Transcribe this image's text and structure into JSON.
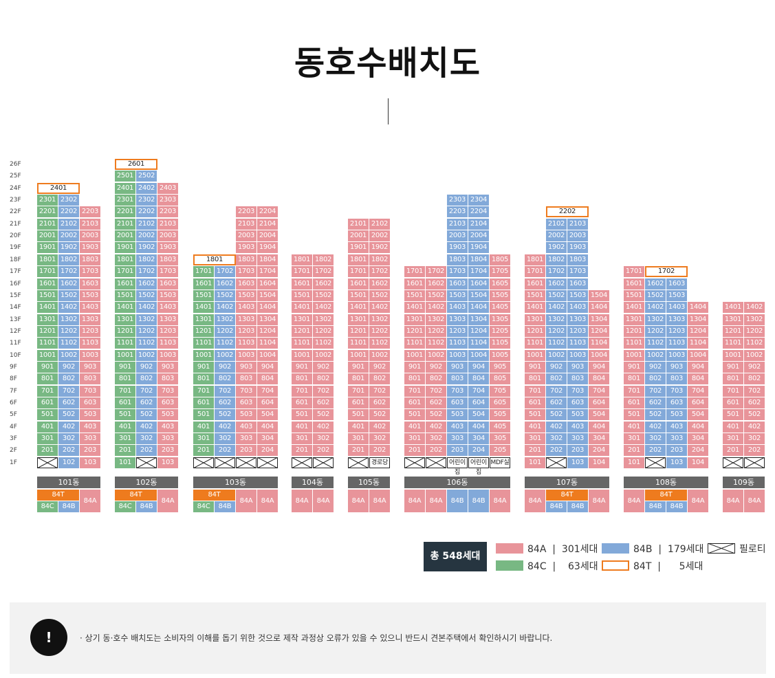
{
  "title": "동호수배치도",
  "floors": [
    "26F",
    "25F",
    "24F",
    "23F",
    "22F",
    "21F",
    "20F",
    "19F",
    "18F",
    "17F",
    "16F",
    "15F",
    "14F",
    "13F",
    "12F",
    "11F",
    "10F",
    "9F",
    "8F",
    "7F",
    "6F",
    "5F",
    "4F",
    "3F",
    "2F",
    "1F"
  ],
  "colors": {
    "84A": "#e8949a",
    "84B": "#82a9d9",
    "84C": "#78b883",
    "84T": "#ee7b1e",
    "pilotis": "#ffffff",
    "label": "#666666",
    "total_bg": "#263540"
  },
  "buildings": [
    {
      "name": "101동",
      "columns": [
        {
          "type": "84C",
          "top": 23,
          "f1": "pilotis",
          "t24": "84T",
          "top_label": "2401"
        },
        {
          "type": "84B",
          "top": 23,
          "f1": "102"
        },
        {
          "type": "84A",
          "top": 22,
          "f1": "103"
        }
      ],
      "types": [
        {
          "label": "84T",
          "span": [
            0,
            1
          ],
          "row": "top"
        },
        {
          "label": "84C",
          "span": [
            0
          ],
          "row": "bottom"
        },
        {
          "label": "84B",
          "span": [
            1
          ],
          "row": "bottom"
        },
        {
          "label": "84A",
          "span": [
            2
          ],
          "row": "full"
        }
      ]
    },
    {
      "name": "102동",
      "columns": [
        {
          "type": "84C",
          "top": 25,
          "f1": "101",
          "t26": "84T",
          "top_label": "2601"
        },
        {
          "type": "84B",
          "top": 25,
          "f1": "pilotis"
        },
        {
          "type": "84A",
          "top": 24,
          "f1": "103"
        }
      ],
      "types": [
        {
          "label": "84T",
          "span": [
            0,
            1
          ],
          "row": "top"
        },
        {
          "label": "84C",
          "span": [
            0
          ],
          "row": "bottom"
        },
        {
          "label": "84B",
          "span": [
            1
          ],
          "row": "bottom"
        },
        {
          "label": "84A",
          "span": [
            2
          ],
          "row": "full"
        }
      ]
    },
    {
      "name": "103동",
      "columns": [
        {
          "type": "84C",
          "top": 17,
          "f1": "pilotis",
          "t18": "84T",
          "top_label": "1801"
        },
        {
          "type": "84B",
          "top": 17,
          "f1": "pilotis"
        },
        {
          "type": "84A",
          "top": 22,
          "f1": "pilotis"
        },
        {
          "type": "84A",
          "top": 22,
          "f1": "pilotis"
        }
      ],
      "types": [
        {
          "label": "84T",
          "span": [
            0,
            1
          ],
          "row": "top"
        },
        {
          "label": "84C",
          "span": [
            0
          ],
          "row": "bottom"
        },
        {
          "label": "84B",
          "span": [
            1
          ],
          "row": "bottom"
        },
        {
          "label": "84A",
          "span": [
            2
          ],
          "row": "full"
        },
        {
          "label": "84A",
          "span": [
            3
          ],
          "row": "full"
        }
      ]
    },
    {
      "name": "104동",
      "columns": [
        {
          "type": "84A",
          "top": 18,
          "f1": "pilotis"
        },
        {
          "type": "84A",
          "top": 18,
          "f1": "pilotis"
        }
      ],
      "types": [
        {
          "label": "84A",
          "span": [
            0
          ],
          "row": "full"
        },
        {
          "label": "84A",
          "span": [
            1
          ],
          "row": "full"
        }
      ]
    },
    {
      "name": "105동",
      "columns": [
        {
          "type": "84A",
          "top": 21,
          "f1": "pilotis"
        },
        {
          "type": "84A",
          "top": 21,
          "f1": "경로당"
        }
      ],
      "types": [
        {
          "label": "84A",
          "span": [
            0
          ],
          "row": "full"
        },
        {
          "label": "84A",
          "span": [
            1
          ],
          "row": "full"
        }
      ]
    },
    {
      "name": "106동",
      "columns": [
        {
          "type": "84A",
          "top": 17,
          "f1": "pilotis"
        },
        {
          "type": "84A",
          "top": 17,
          "f1": "pilotis"
        },
        {
          "type": "84B",
          "top": 23,
          "f1": "어린이집"
        },
        {
          "type": "84B",
          "top": 23,
          "f1": "어린이집"
        },
        {
          "type": "84A",
          "top": 18,
          "f1": "MDF실"
        }
      ],
      "types": [
        {
          "label": "84A",
          "span": [
            0
          ],
          "row": "full"
        },
        {
          "label": "84A",
          "span": [
            1
          ],
          "row": "full"
        },
        {
          "label": "84B",
          "span": [
            2
          ],
          "row": "full"
        },
        {
          "label": "84B",
          "span": [
            3
          ],
          "row": "full"
        },
        {
          "label": "84A",
          "span": [
            4
          ],
          "row": "full"
        }
      ]
    },
    {
      "name": "107동",
      "columns": [
        {
          "type": "84A",
          "top": 18,
          "f1": "101"
        },
        {
          "type": "84B",
          "top": 21,
          "f1": "pilotis",
          "t22": "84T",
          "top_label": "2202"
        },
        {
          "type": "84B",
          "top": 21,
          "f1": "103"
        },
        {
          "type": "84A",
          "top": 15,
          "f1": "104"
        }
      ],
      "types": [
        {
          "label": "84A",
          "span": [
            0
          ],
          "row": "full"
        },
        {
          "label": "84T",
          "span": [
            1,
            2
          ],
          "row": "top"
        },
        {
          "label": "84B",
          "span": [
            1
          ],
          "row": "bottom"
        },
        {
          "label": "84B",
          "span": [
            2
          ],
          "row": "bottom"
        },
        {
          "label": "84A",
          "span": [
            3
          ],
          "row": "full"
        }
      ]
    },
    {
      "name": "108동",
      "columns": [
        {
          "type": "84A",
          "top": 17,
          "f1": "101"
        },
        {
          "type": "84B",
          "top": 16,
          "f1": "pilotis",
          "t17": "84T",
          "top_label": "1702"
        },
        {
          "type": "84B",
          "top": 16,
          "f1": "103"
        },
        {
          "type": "84A",
          "top": 14,
          "f1": "104"
        }
      ],
      "types": [
        {
          "label": "84A",
          "span": [
            0
          ],
          "row": "full"
        },
        {
          "label": "84T",
          "span": [
            1,
            2
          ],
          "row": "top"
        },
        {
          "label": "84B",
          "span": [
            1
          ],
          "row": "bottom"
        },
        {
          "label": "84B",
          "span": [
            2
          ],
          "row": "bottom"
        },
        {
          "label": "84A",
          "span": [
            3
          ],
          "row": "full"
        }
      ]
    },
    {
      "name": "109동",
      "columns": [
        {
          "type": "84A",
          "top": 14,
          "f1": "pilotis"
        },
        {
          "type": "84A",
          "top": 14,
          "f1": "pilotis"
        }
      ],
      "types": [
        {
          "label": "84A",
          "span": [
            0
          ],
          "row": "full"
        },
        {
          "label": "84A",
          "span": [
            1
          ],
          "row": "full"
        }
      ]
    }
  ],
  "legend": {
    "total": "총 548세대",
    "items": [
      {
        "type": "84A",
        "text": "84A  |  301세대"
      },
      {
        "type": "84B",
        "text": "84B  |  179세대"
      },
      {
        "type": "pilotis",
        "text": "필로티"
      },
      {
        "type": "84C",
        "text": "84C  |    63세대"
      },
      {
        "type": "84T",
        "text": "84T  |      5세대"
      }
    ]
  },
  "notice": {
    "icon": "!",
    "text": "· 상기 동·호수 배치도는 소비자의 이해를 돕기 위한 것으로 제작 과정상 오류가 있을 수 있으니 반드시 견본주택에서 확인하시기 바랍니다."
  }
}
